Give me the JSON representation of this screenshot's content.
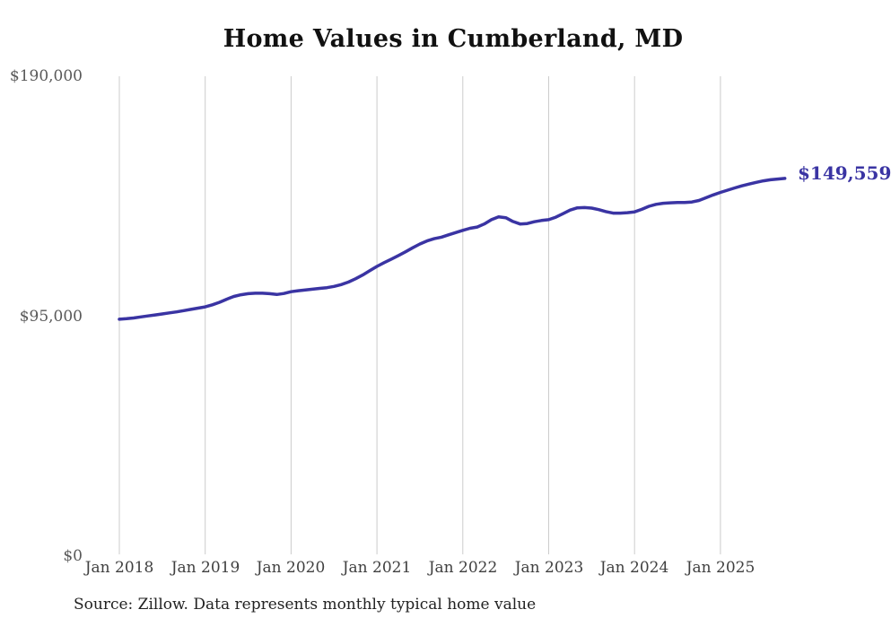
{
  "chart": {
    "title": "Home Values in Cumberland, MD",
    "source_note": "Source: Zillow. Data represents monthly typical home value",
    "end_label": "$149,559",
    "line_color": "#3a34a3",
    "grid_color": "#cccccc",
    "title_color": "#111111",
    "y_tick_color": "#595959",
    "x_tick_color": "#3f3f3f"
  },
  "chart_data": {
    "type": "line",
    "title": "Home Values in Cumberland, MD",
    "series_name": "Typical home value (USD)",
    "frequency": "monthly",
    "x_start": "Jan 2018",
    "x_end": "Oct 2025",
    "ylim": [
      0,
      190000
    ],
    "grid": "vertical-yearly-only",
    "legend": false,
    "last_value": 149559,
    "last_value_label": "$149,559",
    "y_ticks": [
      {
        "label": "$0",
        "value": 0
      },
      {
        "label": "$95,000",
        "value": 95000
      },
      {
        "label": "$190,000",
        "value": 190000
      }
    ],
    "x_ticks": [
      {
        "label": "Jan 2018",
        "month_index": 0
      },
      {
        "label": "Jan 2019",
        "month_index": 12
      },
      {
        "label": "Jan 2020",
        "month_index": 24
      },
      {
        "label": "Jan 2021",
        "month_index": 36
      },
      {
        "label": "Jan 2022",
        "month_index": 48
      },
      {
        "label": "Jan 2023",
        "month_index": 60
      },
      {
        "label": "Jan 2024",
        "month_index": 72
      },
      {
        "label": "Jan 2025",
        "month_index": 84
      }
    ],
    "values": [
      93800,
      94000,
      94300,
      94700,
      95100,
      95500,
      95900,
      96300,
      96700,
      97200,
      97700,
      98200,
      98700,
      99500,
      100500,
      101700,
      102800,
      103500,
      103900,
      104100,
      104100,
      103900,
      103600,
      104000,
      104700,
      105100,
      105400,
      105700,
      106000,
      106300,
      106800,
      107500,
      108500,
      109800,
      111300,
      113000,
      114700,
      116200,
      117600,
      119000,
      120500,
      122100,
      123600,
      124800,
      125700,
      126300,
      127200,
      128100,
      129000,
      129800,
      130300,
      131500,
      133200,
      134300,
      134000,
      132500,
      131500,
      131700,
      132400,
      132900,
      133200,
      134200,
      135600,
      137000,
      137900,
      138000,
      137800,
      137200,
      136400,
      135800,
      135800,
      136000,
      136300,
      137300,
      138500,
      139300,
      139700,
      139900,
      140000,
      140000,
      140200,
      140800,
      141900,
      143000,
      144000,
      144900,
      145800,
      146600,
      147300,
      148000,
      148600,
      149000,
      149300,
      149559
    ]
  }
}
